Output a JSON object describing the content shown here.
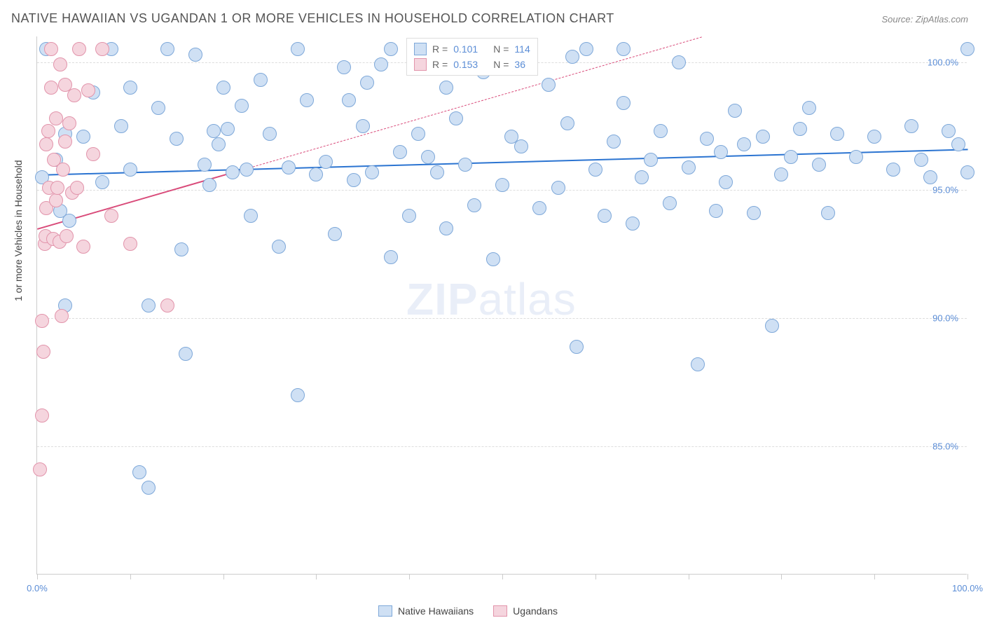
{
  "title": "NATIVE HAWAIIAN VS UGANDAN 1 OR MORE VEHICLES IN HOUSEHOLD CORRELATION CHART",
  "source": "Source: ZipAtlas.com",
  "ylabel": "1 or more Vehicles in Household",
  "watermark": {
    "bold": "ZIP",
    "rest": "atlas"
  },
  "chart": {
    "type": "scatter",
    "background_color": "#ffffff",
    "grid_color": "#dddddd",
    "axis_color": "#cccccc",
    "label_color": "#5b8dd6",
    "text_color": "#555555",
    "title_fontsize": 18,
    "label_fontsize": 13,
    "xlim": [
      0,
      100
    ],
    "ylim": [
      80,
      101
    ],
    "xticks": [
      0,
      10,
      20,
      30,
      40,
      50,
      60,
      70,
      80,
      90,
      100
    ],
    "xtick_labels": {
      "0": "0.0%",
      "100": "100.0%"
    },
    "yticks": [
      85,
      90,
      95,
      100
    ],
    "ytick_labels": {
      "85": "85.0%",
      "90": "90.0%",
      "95": "95.0%",
      "100": "100.0%"
    },
    "marker_radius": 10,
    "marker_radius_large": 15,
    "series": [
      {
        "name": "Native Hawaiians",
        "fill": "#cfe0f4",
        "stroke": "#7ea8d9",
        "trend": {
          "color": "#2b74d1",
          "y_start": 95.6,
          "y_end": 96.6,
          "dash_from_x": null
        },
        "points": [
          [
            0.5,
            95.5
          ],
          [
            1,
            100.5
          ],
          [
            2,
            96.2
          ],
          [
            2.5,
            94.2
          ],
          [
            3,
            90.5
          ],
          [
            3,
            97.2
          ],
          [
            3.5,
            93.8
          ],
          [
            5,
            97.1
          ],
          [
            6,
            98.8
          ],
          [
            7,
            95.3
          ],
          [
            8,
            100.5
          ],
          [
            9,
            97.5
          ],
          [
            10,
            99
          ],
          [
            10,
            95.8
          ],
          [
            11,
            84
          ],
          [
            12,
            83.4
          ],
          [
            12,
            90.5
          ],
          [
            13,
            98.2
          ],
          [
            14,
            100.5
          ],
          [
            15,
            97
          ],
          [
            15.5,
            92.7
          ],
          [
            16,
            88.6
          ],
          [
            17,
            100.3
          ],
          [
            18,
            96
          ],
          [
            18.5,
            95.2
          ],
          [
            19,
            97.3
          ],
          [
            19.5,
            96.8
          ],
          [
            20,
            99
          ],
          [
            20.5,
            97.4
          ],
          [
            21,
            95.7
          ],
          [
            22,
            98.3
          ],
          [
            22.5,
            95.8
          ],
          [
            23,
            94
          ],
          [
            24,
            99.3
          ],
          [
            25,
            97.2
          ],
          [
            26,
            92.8
          ],
          [
            27,
            95.9
          ],
          [
            28,
            87
          ],
          [
            28,
            100.5
          ],
          [
            29,
            98.5
          ],
          [
            30,
            95.6
          ],
          [
            31,
            96.1
          ],
          [
            32,
            93.3
          ],
          [
            33,
            99.8
          ],
          [
            33.5,
            98.5
          ],
          [
            34,
            95.4
          ],
          [
            35,
            97.5
          ],
          [
            35.5,
            99.2
          ],
          [
            36,
            95.7
          ],
          [
            37,
            99.9
          ],
          [
            38,
            92.4
          ],
          [
            38,
            100.5
          ],
          [
            39,
            96.5
          ],
          [
            40,
            94
          ],
          [
            41,
            97.2
          ],
          [
            42,
            96.3
          ],
          [
            43,
            95.7
          ],
          [
            44,
            93.5
          ],
          [
            44,
            99
          ],
          [
            45,
            97.8
          ],
          [
            46,
            96
          ],
          [
            47,
            94.4
          ],
          [
            48,
            99.6
          ],
          [
            49,
            92.3
          ],
          [
            50,
            95.2
          ],
          [
            51,
            97.1
          ],
          [
            52,
            96.7
          ],
          [
            53,
            100
          ],
          [
            54,
            94.3
          ],
          [
            55,
            99.1
          ],
          [
            56,
            95.1
          ],
          [
            57,
            97.6
          ],
          [
            57.5,
            100.2
          ],
          [
            58,
            88.9
          ],
          [
            59,
            100.5
          ],
          [
            60,
            95.8
          ],
          [
            61,
            94
          ],
          [
            62,
            96.9
          ],
          [
            63,
            98.4
          ],
          [
            63,
            100.5
          ],
          [
            64,
            93.7
          ],
          [
            65,
            95.5
          ],
          [
            66,
            96.2
          ],
          [
            67,
            97.3
          ],
          [
            68,
            94.5
          ],
          [
            69,
            100
          ],
          [
            70,
            95.9
          ],
          [
            71,
            88.2
          ],
          [
            72,
            97
          ],
          [
            73,
            94.2
          ],
          [
            73.5,
            96.5
          ],
          [
            74,
            95.3
          ],
          [
            75,
            98.1
          ],
          [
            76,
            96.8
          ],
          [
            77,
            94.1
          ],
          [
            78,
            97.1
          ],
          [
            79,
            89.7
          ],
          [
            80,
            95.6
          ],
          [
            81,
            96.3
          ],
          [
            82,
            97.4
          ],
          [
            83,
            98.2
          ],
          [
            84,
            96
          ],
          [
            85,
            94.1
          ],
          [
            86,
            97.2
          ],
          [
            88,
            96.3
          ],
          [
            90,
            97.1
          ],
          [
            92,
            95.8
          ],
          [
            94,
            97.5
          ],
          [
            95,
            96.2
          ],
          [
            96,
            95.5
          ],
          [
            98,
            97.3
          ],
          [
            99,
            96.8
          ],
          [
            100,
            100.5
          ],
          [
            100,
            95.7
          ]
        ]
      },
      {
        "name": "Ugandans",
        "fill": "#f5d5de",
        "stroke": "#e294ab",
        "trend": {
          "color": "#d94b7a",
          "y_start": 93.5,
          "y_end": 104,
          "dash_from_x": 21
        },
        "points": [
          [
            0.3,
            84.1
          ],
          [
            0.5,
            86.2
          ],
          [
            0.5,
            89.9
          ],
          [
            0.7,
            88.7
          ],
          [
            0.8,
            92.9
          ],
          [
            0.9,
            93.2
          ],
          [
            1,
            94.3
          ],
          [
            1,
            96.8
          ],
          [
            1.2,
            97.3
          ],
          [
            1.3,
            95.1
          ],
          [
            1.5,
            99
          ],
          [
            1.5,
            100.5
          ],
          [
            1.7,
            93.1
          ],
          [
            1.8,
            96.2
          ],
          [
            2,
            94.6
          ],
          [
            2,
            97.8
          ],
          [
            2.2,
            95.1
          ],
          [
            2.4,
            93
          ],
          [
            2.5,
            99.9
          ],
          [
            2.6,
            90.1
          ],
          [
            2.8,
            95.8
          ],
          [
            3,
            96.9
          ],
          [
            3,
            99.1
          ],
          [
            3.2,
            93.2
          ],
          [
            3.5,
            97.6
          ],
          [
            3.8,
            94.9
          ],
          [
            4,
            98.7
          ],
          [
            4.3,
            95.1
          ],
          [
            4.5,
            100.5
          ],
          [
            5,
            92.8
          ],
          [
            5.5,
            98.9
          ],
          [
            6,
            96.4
          ],
          [
            7,
            100.5
          ],
          [
            8,
            94
          ],
          [
            10,
            92.9
          ],
          [
            14,
            90.5
          ]
        ]
      }
    ]
  },
  "legend_top": {
    "rows": [
      {
        "sw_fill": "#cfe0f4",
        "sw_stroke": "#7ea8d9",
        "r_label": "R =",
        "r_val": "0.101",
        "n_label": "N =",
        "n_val": "114"
      },
      {
        "sw_fill": "#f5d5de",
        "sw_stroke": "#e294ab",
        "r_label": "R =",
        "r_val": "0.153",
        "n_label": "N =",
        "n_val": "36"
      }
    ]
  },
  "legend_bottom": {
    "items": [
      {
        "sw_fill": "#cfe0f4",
        "sw_stroke": "#7ea8d9",
        "label": "Native Hawaiians"
      },
      {
        "sw_fill": "#f5d5de",
        "sw_stroke": "#e294ab",
        "label": "Ugandans"
      }
    ]
  }
}
